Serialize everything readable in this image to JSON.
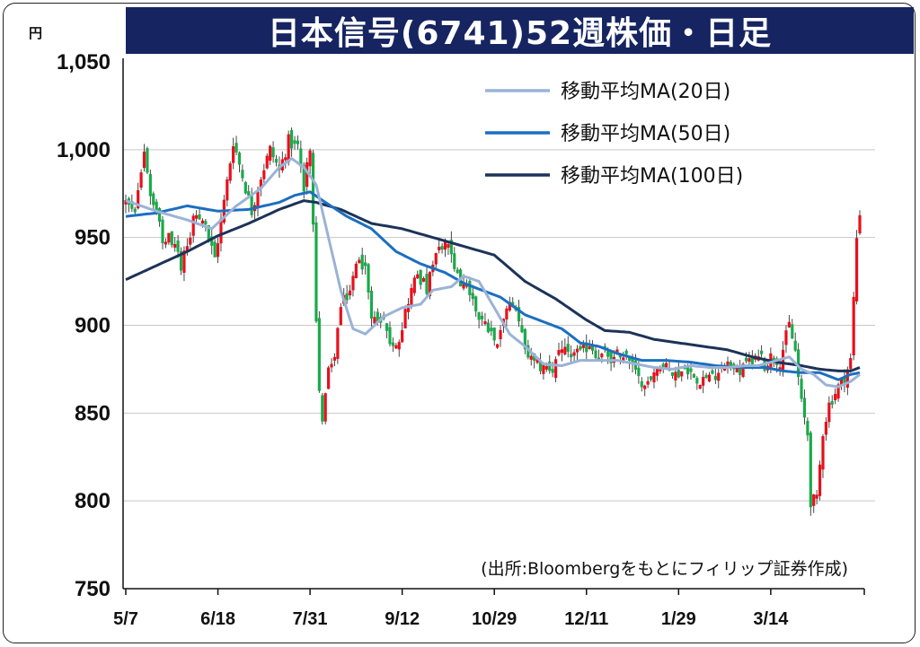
{
  "title": "日本信号(6741)52週株価・日足",
  "unit": "円",
  "source_note": "(出所:Bloombergをもとにフィリップ証券作成)",
  "colors": {
    "title_bg": "#162561",
    "up": "#e8101c",
    "down": "#1aaa4a",
    "ma20": "#9ab3d6",
    "ma50": "#1b6fc0",
    "ma100": "#1c3358"
  },
  "chart_data": {
    "type": "candlestick",
    "ylim": [
      750,
      1050
    ],
    "yticks": [
      "1,050",
      "1,000",
      "950",
      "900",
      "850",
      "800",
      "750"
    ],
    "ytick_values": [
      1050,
      1000,
      950,
      900,
      850,
      800,
      750
    ],
    "xticks": [
      "5/7",
      "6/18",
      "7/31",
      "9/12",
      "10/29",
      "12/11",
      "1/29",
      "3/14"
    ],
    "xtick_index": [
      0,
      30,
      60,
      90,
      120,
      150,
      180,
      210
    ],
    "n_days": 240,
    "grid": "horizontal",
    "legend_position": "top-right",
    "series": [
      {
        "name": "移動平均MA(20日)",
        "type": "line",
        "color": "#9ab3d6"
      },
      {
        "name": "移動平均MA(50日)",
        "type": "line",
        "color": "#1b6fc0"
      },
      {
        "name": "移動平均MA(100日)",
        "type": "line",
        "color": "#1c3358"
      }
    ],
    "close_points": [
      [
        0,
        970
      ],
      [
        3,
        962
      ],
      [
        6,
        1000
      ],
      [
        8,
        975
      ],
      [
        12,
        950
      ],
      [
        16,
        948
      ],
      [
        18,
        935
      ],
      [
        22,
        960
      ],
      [
        26,
        955
      ],
      [
        29,
        938
      ],
      [
        32,
        970
      ],
      [
        35,
        1005
      ],
      [
        38,
        985
      ],
      [
        41,
        965
      ],
      [
        44,
        985
      ],
      [
        47,
        1000
      ],
      [
        50,
        988
      ],
      [
        53,
        1005
      ],
      [
        56,
        1000
      ],
      [
        58,
        980
      ],
      [
        60,
        1002
      ],
      [
        61,
        955
      ],
      [
        62,
        900
      ],
      [
        63,
        860
      ],
      [
        64,
        848
      ],
      [
        66,
        875
      ],
      [
        68,
        885
      ],
      [
        70,
        910
      ],
      [
        73,
        920
      ],
      [
        76,
        940
      ],
      [
        78,
        930
      ],
      [
        80,
        905
      ],
      [
        83,
        905
      ],
      [
        86,
        890
      ],
      [
        89,
        893
      ],
      [
        92,
        915
      ],
      [
        95,
        930
      ],
      [
        98,
        920
      ],
      [
        101,
        940
      ],
      [
        104,
        945
      ],
      [
        106,
        940
      ],
      [
        109,
        925
      ],
      [
        112,
        918
      ],
      [
        115,
        905
      ],
      [
        118,
        900
      ],
      [
        121,
        893
      ],
      [
        124,
        910
      ],
      [
        127,
        910
      ],
      [
        130,
        885
      ],
      [
        133,
        877
      ],
      [
        136,
        876
      ],
      [
        139,
        876
      ],
      [
        142,
        885
      ],
      [
        145,
        883
      ],
      [
        148,
        883
      ],
      [
        151,
        890
      ],
      [
        154,
        882
      ],
      [
        157,
        883
      ],
      [
        159,
        880
      ],
      [
        161,
        885
      ],
      [
        164,
        880
      ],
      [
        167,
        868
      ],
      [
        170,
        870
      ],
      [
        173,
        875
      ],
      [
        176,
        875
      ],
      [
        179,
        872
      ],
      [
        182,
        875
      ],
      [
        185,
        870
      ],
      [
        188,
        870
      ],
      [
        191,
        870
      ],
      [
        194,
        878
      ],
      [
        197,
        878
      ],
      [
        200,
        872
      ],
      [
        203,
        880
      ],
      [
        206,
        885
      ],
      [
        208,
        878
      ],
      [
        210,
        882
      ],
      [
        213,
        880
      ],
      [
        216,
        900
      ],
      [
        218,
        885
      ],
      [
        220,
        855
      ],
      [
        222,
        838
      ],
      [
        223,
        800
      ],
      [
        225,
        800
      ],
      [
        227,
        840
      ],
      [
        229,
        855
      ],
      [
        232,
        865
      ],
      [
        234,
        870
      ],
      [
        236,
        880
      ],
      [
        238,
        950
      ],
      [
        239,
        965
      ]
    ],
    "ma20_points": [
      [
        0,
        971
      ],
      [
        10,
        965
      ],
      [
        20,
        960
      ],
      [
        28,
        955
      ],
      [
        36,
        968
      ],
      [
        44,
        978
      ],
      [
        50,
        990
      ],
      [
        54,
        995
      ],
      [
        58,
        990
      ],
      [
        62,
        980
      ],
      [
        66,
        950
      ],
      [
        70,
        920
      ],
      [
        74,
        898
      ],
      [
        78,
        895
      ],
      [
        84,
        905
      ],
      [
        90,
        910
      ],
      [
        96,
        912
      ],
      [
        100,
        920
      ],
      [
        106,
        922
      ],
      [
        110,
        928
      ],
      [
        115,
        925
      ],
      [
        120,
        910
      ],
      [
        125,
        895
      ],
      [
        130,
        888
      ],
      [
        136,
        878
      ],
      [
        142,
        877
      ],
      [
        148,
        880
      ],
      [
        154,
        880
      ],
      [
        160,
        880
      ],
      [
        166,
        878
      ],
      [
        172,
        876
      ],
      [
        178,
        875
      ],
      [
        184,
        877
      ],
      [
        190,
        876
      ],
      [
        196,
        876
      ],
      [
        202,
        877
      ],
      [
        206,
        877
      ],
      [
        212,
        880
      ],
      [
        216,
        882
      ],
      [
        220,
        875
      ],
      [
        224,
        872
      ],
      [
        228,
        866
      ],
      [
        232,
        865
      ],
      [
        236,
        868
      ],
      [
        239,
        872
      ]
    ],
    "ma50_points": [
      [
        0,
        962
      ],
      [
        10,
        964
      ],
      [
        20,
        968
      ],
      [
        30,
        965
      ],
      [
        40,
        966
      ],
      [
        50,
        970
      ],
      [
        55,
        974
      ],
      [
        60,
        976
      ],
      [
        65,
        970
      ],
      [
        72,
        962
      ],
      [
        80,
        955
      ],
      [
        88,
        942
      ],
      [
        96,
        935
      ],
      [
        104,
        930
      ],
      [
        110,
        924
      ],
      [
        116,
        920
      ],
      [
        122,
        916
      ],
      [
        130,
        906
      ],
      [
        136,
        902
      ],
      [
        142,
        898
      ],
      [
        148,
        890
      ],
      [
        154,
        888
      ],
      [
        160,
        884
      ],
      [
        168,
        880
      ],
      [
        176,
        880
      ],
      [
        184,
        879
      ],
      [
        192,
        877
      ],
      [
        200,
        876
      ],
      [
        208,
        876
      ],
      [
        214,
        874
      ],
      [
        220,
        873
      ],
      [
        226,
        873
      ],
      [
        232,
        869
      ],
      [
        236,
        872
      ],
      [
        239,
        873
      ]
    ],
    "ma100_points": [
      [
        0,
        926
      ],
      [
        10,
        934
      ],
      [
        20,
        942
      ],
      [
        30,
        951
      ],
      [
        40,
        958
      ],
      [
        50,
        966
      ],
      [
        58,
        971
      ],
      [
        62,
        970
      ],
      [
        70,
        966
      ],
      [
        80,
        958
      ],
      [
        90,
        955
      ],
      [
        100,
        950
      ],
      [
        110,
        945
      ],
      [
        120,
        940
      ],
      [
        130,
        925
      ],
      [
        140,
        915
      ],
      [
        150,
        903
      ],
      [
        156,
        897
      ],
      [
        164,
        896
      ],
      [
        172,
        892
      ],
      [
        180,
        890
      ],
      [
        188,
        888
      ],
      [
        196,
        886
      ],
      [
        204,
        882
      ],
      [
        212,
        879
      ],
      [
        220,
        877
      ],
      [
        226,
        875
      ],
      [
        232,
        874
      ],
      [
        236,
        874
      ],
      [
        239,
        876
      ]
    ]
  }
}
